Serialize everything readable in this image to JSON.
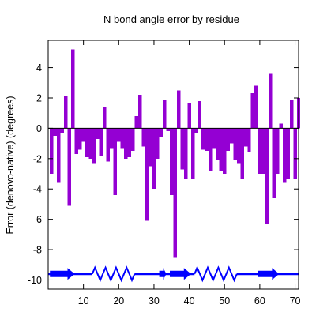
{
  "chart_data": {
    "type": "bar",
    "title": "N bond angle error by residue",
    "xlabel": "",
    "ylabel": "Error (denovo-native) (degrees)",
    "xlim": [
      0,
      71
    ],
    "ylim": [
      -10.6,
      5.8
    ],
    "xticks": [
      10,
      20,
      30,
      40,
      50,
      60,
      70
    ],
    "yticks": [
      -10,
      -8,
      -6,
      -4,
      -2,
      0,
      2,
      4
    ],
    "grid": false,
    "legend": "none",
    "bar_color": "#9400D3",
    "x": [
      1,
      2,
      3,
      4,
      5,
      6,
      7,
      8,
      9,
      10,
      11,
      12,
      13,
      14,
      15,
      16,
      17,
      18,
      19,
      20,
      21,
      22,
      23,
      24,
      25,
      26,
      27,
      28,
      29,
      30,
      31,
      32,
      33,
      34,
      35,
      36,
      37,
      38,
      39,
      40,
      41,
      42,
      43,
      44,
      45,
      46,
      47,
      48,
      49,
      50,
      51,
      52,
      53,
      54,
      55,
      56,
      57,
      58,
      59,
      60,
      61,
      62,
      63,
      64,
      65,
      66,
      67,
      68,
      69,
      70,
      71
    ],
    "values": [
      -3.0,
      -0.5,
      -3.6,
      -0.3,
      2.1,
      -5.1,
      5.2,
      -1.7,
      -1.4,
      -0.9,
      -1.9,
      -2.0,
      -2.3,
      -0.7,
      -1.8,
      1.4,
      -2.2,
      -1.3,
      -4.4,
      -0.9,
      -1.3,
      -2.0,
      -1.9,
      -1.5,
      0.8,
      2.2,
      -1.2,
      -6.1,
      -2.5,
      -4.0,
      -2.0,
      -0.6,
      1.9,
      -0.2,
      -4.4,
      -8.5,
      2.5,
      -2.7,
      -3.3,
      1.7,
      -3.3,
      -0.3,
      1.8,
      -1.4,
      -1.5,
      -2.8,
      -1.3,
      -2.1,
      -2.8,
      -3.0,
      -1.5,
      -1.0,
      -2.1,
      -2.3,
      -3.3,
      -1.2,
      -1.6,
      2.3,
      2.8,
      -3.0,
      -3.0,
      -6.3,
      3.6,
      -4.6,
      -3.0,
      0.3,
      -3.6,
      -3.3,
      1.9,
      -3.3,
      2.0
    ],
    "secondary_structure": {
      "y": -9.6,
      "color": "#0000FF",
      "elements": [
        {
          "type": "strand",
          "start": 0.5,
          "end": 7.5
        },
        {
          "type": "helix",
          "start": 12.5,
          "end": 24.5
        },
        {
          "type": "strand",
          "start": 31.5,
          "end": 33.5
        },
        {
          "type": "strand",
          "start": 34.5,
          "end": 40.5
        },
        {
          "type": "helix",
          "start": 41.5,
          "end": 53.5
        },
        {
          "type": "strand",
          "start": 59.5,
          "end": 65.5
        }
      ]
    }
  }
}
